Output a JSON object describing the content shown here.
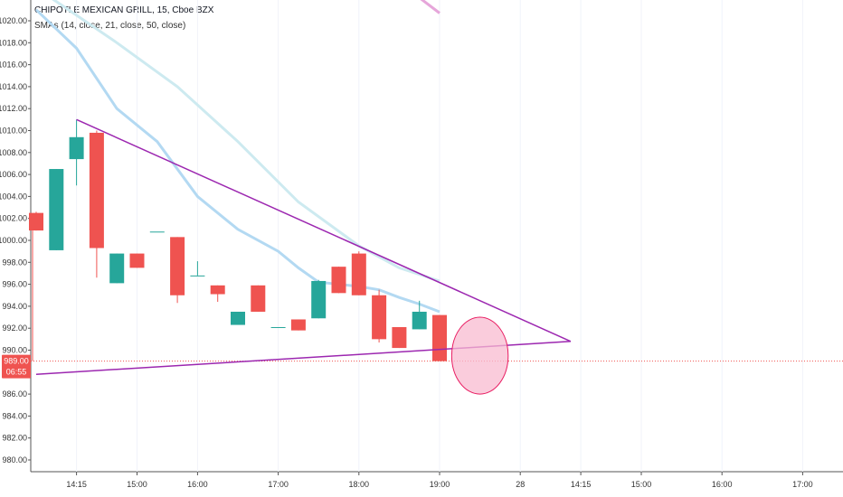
{
  "header": {
    "title": "CHIPOTLE MEXICAN GRILL, 15, Cboe BZX",
    "indicator": "SMAs (14, close, 21, close, 50, close)"
  },
  "colors": {
    "up": "#26a69a",
    "down": "#ef5350",
    "sma14": "#b3d9f2",
    "sma21": "#cdeaf0",
    "sma50": "#e6a6da",
    "trendline": "#9c27b0",
    "ellipse_fill": "#f8bbd0",
    "ellipse_stroke": "#e91e63",
    "price_line": "#ef5350"
  },
  "price_labels": {
    "last_price": "989.00",
    "countdown": "06:55"
  },
  "chart_data": {
    "type": "candlestick",
    "title": "CHIPOTLE MEXICAN GRILL, 15, Cboe BZX",
    "ylim": [
      978,
      1022
    ],
    "y_ticks": [
      980,
      982,
      984,
      986,
      988,
      990,
      992,
      994,
      996,
      998,
      1000,
      1002,
      1004,
      1006,
      1008,
      1010,
      1012,
      1014,
      1016,
      1018,
      1020
    ],
    "y_tick_labels": [
      "980.00",
      "982.00",
      "984.00",
      "986.00",
      "988.00",
      "990.00",
      "992.00",
      "994.00",
      "996.00",
      "998.00",
      "1000.00",
      "1002.00",
      "1004.00",
      "1006.00",
      "1008.00",
      "1010.00",
      "1012.00",
      "1014.00",
      "1016.00",
      "1018.00",
      "1020.00"
    ],
    "x_ticks": [
      "14:15",
      "15:00",
      "16:00",
      "17:00",
      "18:00",
      "19:00",
      "28",
      "14:15",
      "15:00",
      "16:00",
      "17:00"
    ],
    "x_tick_index": [
      2,
      5,
      8,
      12,
      16,
      20,
      24,
      27,
      30,
      34,
      38
    ],
    "candles": [
      {
        "o": 1002.5,
        "h": 1002.6,
        "l": 1000.9,
        "c": 1000.9
      },
      {
        "o": 999.1,
        "h": 1006.5,
        "l": 999.1,
        "c": 1006.5
      },
      {
        "o": 1007.4,
        "h": 1011.0,
        "l": 1005.0,
        "c": 1009.4
      },
      {
        "o": 1009.8,
        "h": 1010.0,
        "l": 996.6,
        "c": 999.3
      },
      {
        "o": 996.1,
        "h": 998.8,
        "l": 996.1,
        "c": 998.8
      },
      {
        "o": 998.8,
        "h": 998.8,
        "l": 997.5,
        "c": 997.5
      },
      {
        "o": 1000.8,
        "h": 1000.8,
        "l": 1000.8,
        "c": 1000.8
      },
      {
        "o": 1000.3,
        "h": 1000.3,
        "l": 994.3,
        "c": 995.0
      },
      {
        "o": 996.8,
        "h": 998.1,
        "l": 996.8,
        "c": 996.8
      },
      {
        "o": 995.9,
        "h": 995.9,
        "l": 994.4,
        "c": 995.1
      },
      {
        "o": 992.3,
        "h": 993.5,
        "l": 992.3,
        "c": 993.5
      },
      {
        "o": 995.9,
        "h": 995.9,
        "l": 993.5,
        "c": 993.5
      },
      {
        "o": 992.1,
        "h": 992.1,
        "l": 992.1,
        "c": 992.1
      },
      {
        "o": 992.8,
        "h": 992.8,
        "l": 991.8,
        "c": 991.8
      },
      {
        "o": 992.9,
        "h": 996.4,
        "l": 992.9,
        "c": 996.3
      },
      {
        "o": 997.6,
        "h": 997.6,
        "l": 995.2,
        "c": 995.2
      },
      {
        "o": 998.8,
        "h": 999.0,
        "l": 995.0,
        "c": 995.0
      },
      {
        "o": 995.0,
        "h": 995.5,
        "l": 990.7,
        "c": 991.0
      },
      {
        "o": 992.1,
        "h": 992.1,
        "l": 990.2,
        "c": 990.2
      },
      {
        "o": 991.9,
        "h": 994.5,
        "l": 991.9,
        "c": 993.5
      },
      {
        "o": 993.2,
        "h": 993.2,
        "l": 989.0,
        "c": 989.0
      }
    ],
    "sma14": [
      [
        0,
        1021.0
      ],
      [
        2,
        1017.5
      ],
      [
        4,
        1012.0
      ],
      [
        6,
        1009.0
      ],
      [
        8,
        1004.0
      ],
      [
        10,
        1001.0
      ],
      [
        12,
        999.0
      ],
      [
        13,
        997.5
      ],
      [
        14,
        996.2
      ],
      [
        16,
        995.8
      ],
      [
        17,
        995.5
      ],
      [
        18,
        994.8
      ],
      [
        19,
        994.2
      ],
      [
        20,
        993.5
      ]
    ],
    "sma21": [
      [
        0,
        1023.0
      ],
      [
        4,
        1018.0
      ],
      [
        7,
        1014.0
      ],
      [
        10,
        1009.0
      ],
      [
        13,
        1003.5
      ],
      [
        16,
        999.5
      ],
      [
        18,
        997.5
      ],
      [
        20,
        996.3
      ]
    ],
    "sma50": [
      [
        18,
        1023.5
      ],
      [
        20,
        1020.7
      ]
    ],
    "trendlines": [
      {
        "from": [
          2,
          1011.0
        ],
        "to": [
          26.5,
          990.8
        ]
      },
      {
        "from": [
          0,
          987.8
        ],
        "to": [
          26.5,
          990.8
        ]
      }
    ],
    "ellipse": {
      "x_from": 20.6,
      "x_to": 23.4,
      "y_from": 986.0,
      "y_to": 993.0
    }
  }
}
